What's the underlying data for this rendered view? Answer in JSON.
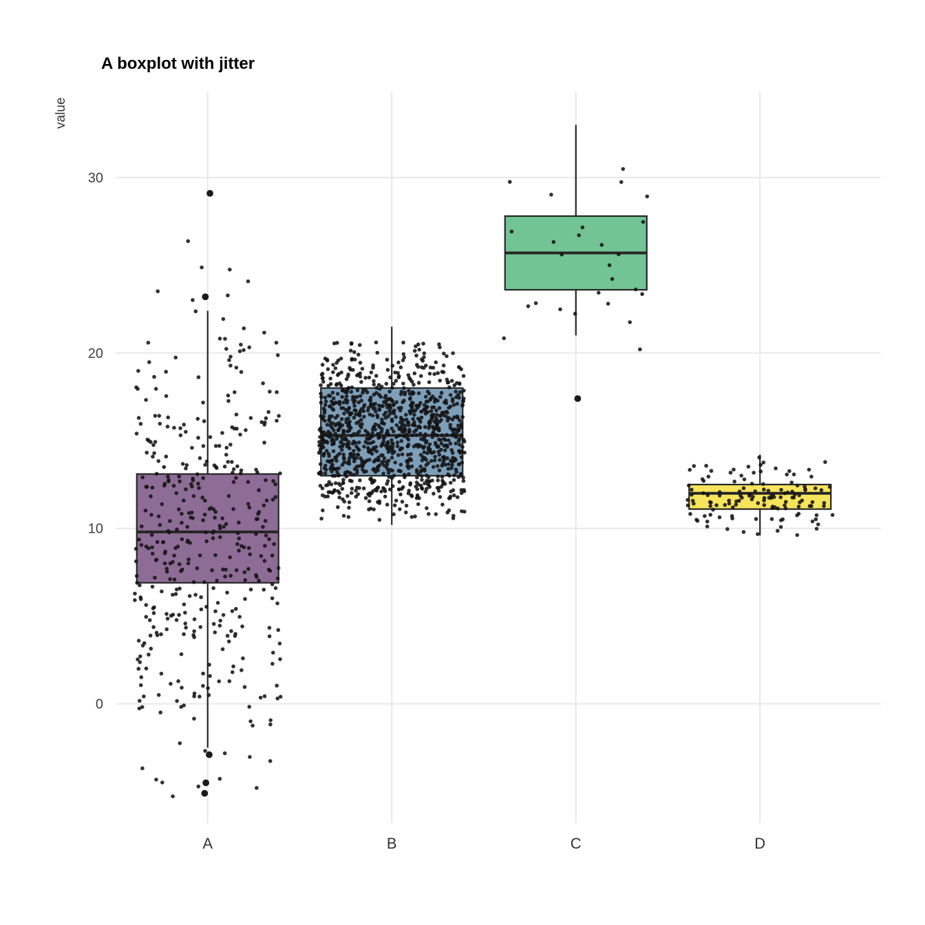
{
  "chart_data": {
    "type": "boxplot",
    "title": "A boxplot with jitter",
    "ylabel": "value",
    "xlabel": "",
    "categories": [
      "A",
      "B",
      "C",
      "D"
    ],
    "yticks": [
      0,
      10,
      20,
      30
    ],
    "ylim": [
      -6.8,
      34.9
    ],
    "grid": true,
    "legend": "none",
    "background_color": "#ffffff",
    "grid_color": "#e8e8e8",
    "point_color": "#151515",
    "box_border_color": "#262626",
    "axis_text_color": "#404040",
    "groups": [
      {
        "name": "A",
        "fill": "#8D6C95",
        "seed": 101,
        "box": {
          "whisker_low": -2.5,
          "q1": 6.9,
          "median": 9.8,
          "q3": 13.1,
          "whisker_high": 22.4
        },
        "outliers": [
          29.1,
          23.2,
          -2.9,
          -4.5,
          -5.1
        ],
        "jitter": {
          "n": 420,
          "mean": 9.9,
          "sd": 6.4,
          "min": -5.3,
          "max": 29.2
        }
      },
      {
        "name": "B",
        "fill": "#7D9FBA",
        "seed": 202,
        "box": {
          "whisker_low": 10.2,
          "q1": 13.0,
          "median": 15.3,
          "q3": 18.0,
          "whisker_high": 21.5
        },
        "outliers": [],
        "jitter": {
          "n": 1100,
          "mean": 15.4,
          "sd": 2.4,
          "min": 10.4,
          "max": 20.6
        }
      },
      {
        "name": "C",
        "fill": "#72C494",
        "seed": 303,
        "box": {
          "whisker_low": 21.0,
          "q1": 23.6,
          "median": 25.7,
          "q3": 27.8,
          "whisker_high": 33.0
        },
        "outliers": [
          17.4
        ],
        "jitter": {
          "n": 26,
          "mean": 25.9,
          "sd": 3.4,
          "min": 17.3,
          "max": 33.2
        }
      },
      {
        "name": "D",
        "fill": "#F6E45C",
        "seed": 404,
        "box": {
          "whisker_low": 9.6,
          "q1": 11.1,
          "median": 12.0,
          "q3": 12.5,
          "whisker_high": 14.2
        },
        "outliers": [],
        "jitter": {
          "n": 130,
          "mean": 11.8,
          "sd": 1.0,
          "min": 9.5,
          "max": 14.3
        }
      }
    ]
  }
}
